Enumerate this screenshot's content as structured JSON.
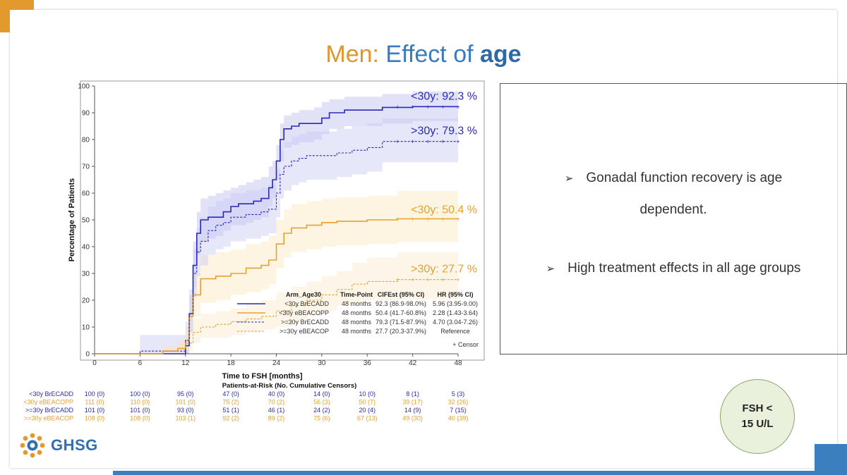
{
  "slide": {
    "title_part1": "Men:",
    "title_part2": " Effect of ",
    "title_part3": "age",
    "bullets": [
      {
        "text": "Gonadal function recovery is age",
        "text2": "dependent."
      },
      {
        "text": "High treatment effects in all age groups"
      }
    ],
    "fsh_line1": "FSH <",
    "fsh_line2": "15 U/L",
    "logo_text": "GHSG",
    "arrow_glyph": "➢"
  },
  "colors": {
    "blue": "#2a2ab8",
    "orange": "#e6a12f",
    "blue_band": "#c9c9f3",
    "orange_band": "#fbeccb"
  },
  "chart_data": {
    "type": "line",
    "xlabel": "Time to FSH [months]",
    "ylabel": "Percentage of Patients",
    "xlim": [
      0,
      48
    ],
    "ylim": [
      0,
      100
    ],
    "xticks": [
      0,
      6,
      12,
      18,
      24,
      30,
      36,
      42,
      48
    ],
    "yticks": [
      0,
      10,
      20,
      30,
      40,
      50,
      60,
      70,
      80,
      90,
      100
    ],
    "annotations": [
      {
        "text": "<30y: 92.3 %",
        "series": 0
      },
      {
        "text": ">30y: 79.3 %",
        "series": 2
      },
      {
        "text": "<30y: 50.4 %",
        "series": 1
      },
      {
        "text": ">30y: 27.7 %",
        "series": 3
      }
    ],
    "series": [
      {
        "name": "<30y BrECADD",
        "color": "blue",
        "dash": false,
        "x": [
          0,
          11.5,
          12,
          12.5,
          13,
          13.5,
          14,
          15,
          16,
          17,
          18,
          19,
          20,
          21,
          22,
          23,
          23.5,
          24,
          24.5,
          25,
          26,
          27,
          28,
          29,
          30,
          31,
          32,
          33,
          35,
          38,
          42,
          48
        ],
        "y": [
          0,
          0,
          3,
          15,
          33,
          45,
          50,
          51,
          51,
          53,
          55,
          56,
          56,
          57,
          58,
          62,
          65,
          72,
          80,
          84,
          85,
          86,
          86,
          86,
          88,
          90,
          90,
          91,
          91,
          92,
          92.3,
          92.3
        ],
        "band_lo": [
          0,
          0,
          0,
          8,
          25,
          37,
          42,
          43,
          44,
          46,
          48,
          48,
          49,
          50,
          51,
          55,
          58,
          65,
          72,
          77,
          78,
          79,
          79,
          80,
          82,
          84,
          84,
          85,
          85,
          86,
          86.9,
          86.9
        ],
        "band_hi": [
          0,
          0,
          7,
          22,
          42,
          53,
          58,
          59,
          60,
          61,
          62,
          63,
          64,
          65,
          66,
          70,
          72,
          78,
          86,
          89,
          90,
          91,
          91,
          92,
          94,
          95,
          95,
          96,
          96,
          97,
          98,
          98
        ]
      },
      {
        "name": "<30y eBEACOPP",
        "color": "orange",
        "dash": false,
        "x": [
          0,
          6,
          9,
          11,
          12,
          12.5,
          13,
          14,
          16,
          18,
          20,
          22,
          23,
          24,
          25,
          26,
          28,
          30,
          32,
          36,
          40,
          48
        ],
        "y": [
          0,
          0,
          1,
          2,
          5,
          14,
          22,
          28,
          29,
          30,
          32,
          33,
          35,
          41,
          45,
          47,
          48,
          49,
          49.5,
          50,
          50.4,
          50.4
        ],
        "band_lo": [
          0,
          0,
          0,
          0,
          1,
          7,
          14,
          19,
          20,
          22,
          23,
          24,
          26,
          32,
          36,
          38,
          39,
          40,
          40.5,
          41,
          41.7,
          41.7
        ],
        "band_hi": [
          0,
          0,
          3,
          5,
          10,
          21,
          30,
          37,
          38,
          39,
          41,
          42,
          44,
          50,
          54,
          56,
          57,
          58,
          58.5,
          59,
          60.8,
          60.8
        ]
      },
      {
        "name": ">=30y BrECADD",
        "color": "blue",
        "dash": true,
        "x": [
          0,
          6,
          11.5,
          12,
          12.5,
          13,
          13.5,
          14,
          15,
          16,
          17,
          18,
          20,
          22,
          23,
          24,
          24.5,
          25,
          26,
          27,
          28,
          30,
          32,
          34,
          36,
          38,
          48
        ],
        "y": [
          0,
          1,
          1,
          5,
          15,
          30,
          38,
          42,
          46,
          48,
          49,
          51,
          52,
          53,
          54,
          60,
          67,
          70,
          72,
          73,
          74,
          74,
          75,
          76,
          77,
          79.3,
          79.3
        ],
        "band_lo": [
          0,
          0,
          0,
          0,
          8,
          21,
          29,
          33,
          37,
          39,
          40,
          42,
          43,
          44,
          45,
          51,
          58,
          61,
          63,
          64,
          65,
          65,
          66,
          67,
          68,
          71.5,
          71.5
        ],
        "band_hi": [
          0,
          7,
          7,
          12,
          24,
          39,
          47,
          51,
          55,
          57,
          58,
          60,
          61,
          62,
          63,
          69,
          76,
          79,
          81,
          82,
          83,
          83,
          84,
          85,
          86,
          87.9,
          87.9
        ]
      },
      {
        "name": ">=30y eBEACOP",
        "color": "orange",
        "dash": true,
        "x": [
          0,
          6,
          9,
          11,
          12,
          13,
          14,
          16,
          18,
          20,
          22,
          24,
          26,
          28,
          30,
          32,
          34,
          36,
          40,
          48
        ],
        "y": [
          0,
          0,
          1,
          2,
          4,
          8,
          10,
          11,
          12,
          13,
          14,
          16,
          18,
          20,
          22,
          24,
          26,
          27,
          27.7,
          27.7
        ],
        "band_lo": [
          0,
          0,
          0,
          0,
          1,
          4,
          6,
          6,
          7,
          8,
          9,
          10,
          12,
          14,
          16,
          18,
          19,
          20,
          20.3,
          20.3
        ],
        "band_hi": [
          0,
          0,
          3,
          5,
          8,
          13,
          15,
          16,
          17,
          19,
          20,
          23,
          25,
          27,
          29,
          31,
          34,
          36,
          37.9,
          37.9
        ]
      }
    ],
    "legend": {
      "placement": "bottom-right",
      "headers": [
        "Arm_Age30",
        "Time-Point",
        "CIFEst (95% CI)",
        "HR (95% CI)"
      ],
      "rows": [
        [
          "<30y BrECADD",
          "48 months",
          "92.3 (86.9-98.0%)",
          "5.96 (3.95-9.00)"
        ],
        [
          "<30y eBEACOPP",
          "48 months",
          "50.4 (41.7-60.8%)",
          "2.28 (1.43-3.64)"
        ],
        [
          ">=30y BrECADD",
          "48 months",
          "79.3 (71.5-87.9%)",
          "4.70 (3.04-7.26)"
        ],
        [
          ">=30y eBEACOP",
          "48 months",
          "27.7 (20.3-37.9%)",
          "Reference"
        ]
      ],
      "censor_label": "+ Censor"
    },
    "risk_table": {
      "title": "Patients-at-Risk (No. Cumulative Censors)",
      "rows": [
        {
          "label": "<30y BrECADD",
          "color": "blue",
          "values": [
            "100 (0)",
            "100 (0)",
            "95 (0)",
            "47 (0)",
            "40 (0)",
            "14 (0)",
            "10 (0)",
            "8 (1)",
            "5 (3)"
          ]
        },
        {
          "label": "<30y eBEACOPP",
          "color": "orange",
          "values": [
            "111 (0)",
            "110 (0)",
            "101 (0)",
            "75 (2)",
            "70 (2)",
            "56 (3)",
            "50 (7)",
            "39 (17)",
            "32 (26)"
          ]
        },
        {
          "label": ">=30y BrECADD",
          "color": "blue",
          "values": [
            "101 (0)",
            "101 (0)",
            "93 (0)",
            "51 (1)",
            "46 (1)",
            "24 (2)",
            "20 (4)",
            "14 (9)",
            "7 (15)"
          ]
        },
        {
          "label": ">=30y eBEACOP",
          "color": "orange",
          "values": [
            "108 (0)",
            "108 (0)",
            "103 (1)",
            "92 (2)",
            "89 (2)",
            "75 (6)",
            "67 (13)",
            "49 (30)",
            "40 (39)"
          ]
        }
      ]
    }
  }
}
